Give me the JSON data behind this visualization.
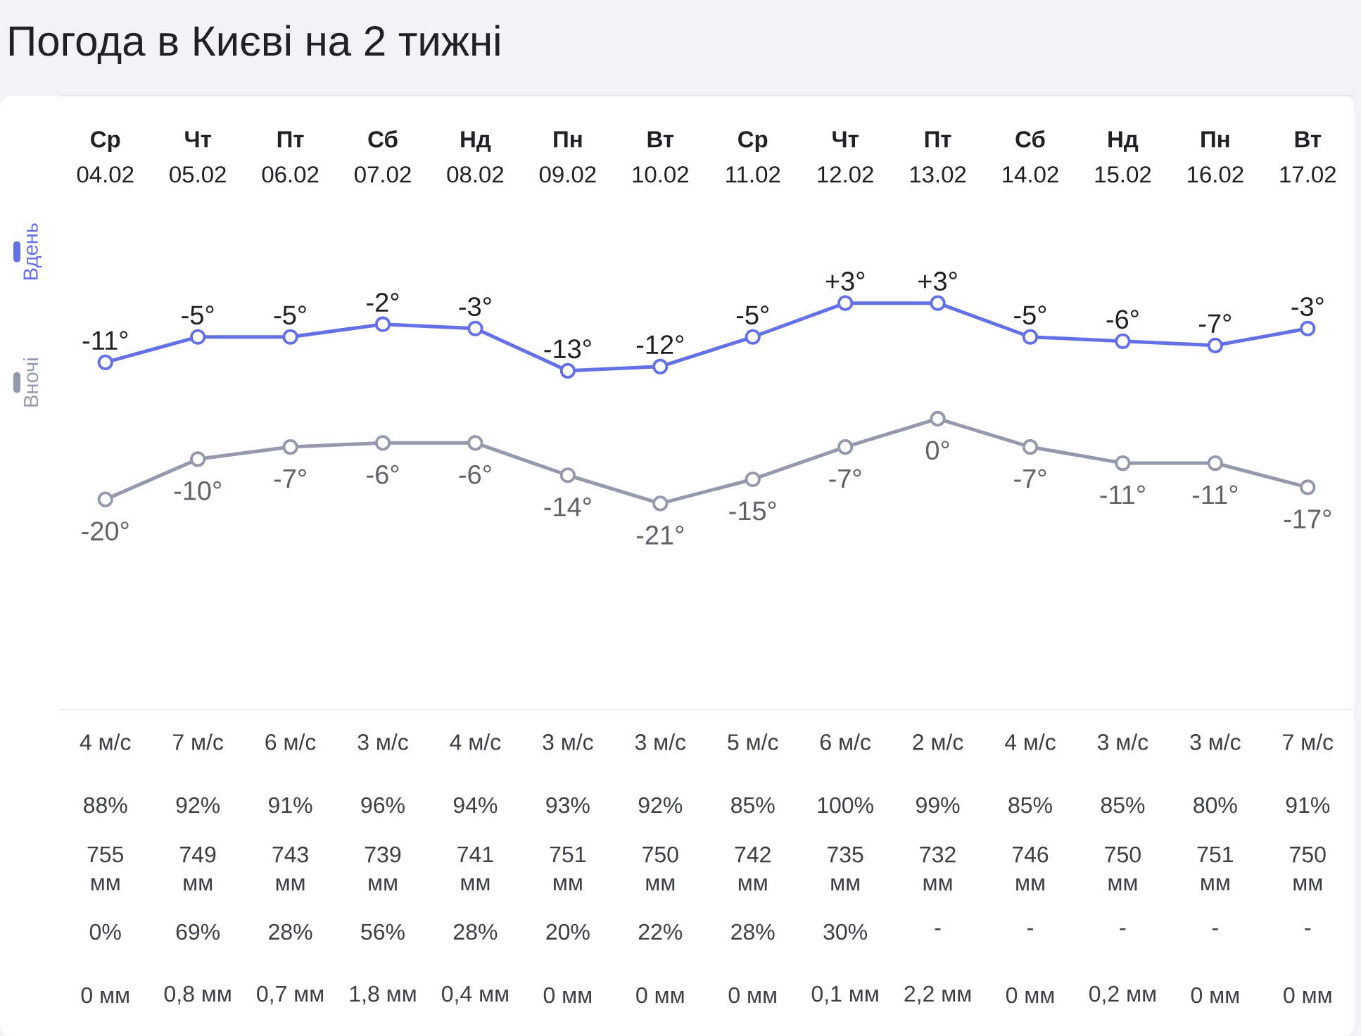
{
  "chart_data": [
    {
      "type": "line",
      "title": "Погода в Києві на 2 тижні",
      "categories": [
        "**Ср** 04.02",
        "**Чт** 05.02",
        "**Пт** 06.02",
        "**Сб** 07.02",
        "**Нд** 08.02",
        "**Пн** 09.02",
        "**Вт** 10.02",
        "**Ср** 11.02",
        "**Чт** 12.02",
        "**Пт** 13.02",
        "**Сб** 14.02",
        "**Нд** 15.02",
        "**Пн** 16.02",
        "**Вт** 17.02"
      ],
      "ylim": [
        -93,
        52
      ],
      "y2lim": [
        -72,
        80
      ],
      "tick_labels": "x",
      "marker": "circle",
      "legend": "left",
      "series": [
        {
          "name": "Вдень",
          "color": "#6470e6",
          "values": [
            -11,
            -5,
            -5,
            -2,
            -3,
            -13,
            -12,
            -5,
            3,
            3,
            -5,
            -6,
            -7,
            -3
          ],
          "value_labels": [
            "-11°",
            "-5°",
            "-5°",
            "-2°",
            "-3°",
            "-13°",
            "-12°",
            "-5°",
            "+3°",
            "+3°",
            "-5°",
            "-6°",
            "-7°",
            "-3°"
          ]
        },
        {
          "name": "Вночі",
          "color": "#9499ab",
          "axis": "y2",
          "values": [
            -20,
            -10,
            -7,
            -6,
            -6,
            -14,
            -21,
            -15,
            -7,
            0,
            -7,
            -11,
            -11,
            -17
          ],
          "value_labels": [
            "-20°",
            "-10°",
            "-7°",
            "-6°",
            "-6°",
            "-14°",
            "-21°",
            "-15°",
            "-7°",
            "0°",
            "-7°",
            "-11°",
            "-11°",
            "-17°"
          ]
        }
      ]
    },
    {
      "type": "other",
      "annotations": [
        "4 м/с",
        "7 м/с",
        "6 м/с",
        "3 м/с",
        "4 м/с",
        "3 м/с",
        "3 м/с",
        "5 м/с",
        "6 м/с",
        "2 м/с",
        "4 м/с",
        "3 м/с",
        "3 м/с",
        "7 м/с"
      ]
    },
    {
      "type": "other",
      "annotations": [
        "88%",
        "92%",
        "91%",
        "96%",
        "94%",
        "93%",
        "92%",
        "85%",
        "100%",
        "99%",
        "85%",
        "85%",
        "80%",
        "91%"
      ]
    },
    {
      "type": "other",
      "annotations": [
        "755 мм",
        "749 мм",
        "743 мм",
        "739 мм",
        "741 мм",
        "751 мм",
        "750 мм",
        "742 мм",
        "735 мм",
        "732 мм",
        "746 мм",
        "750 мм",
        "751 мм",
        "750 мм"
      ]
    },
    {
      "type": "other",
      "annotations": [
        "0%",
        "69%",
        "28%",
        "56%",
        "28%",
        "20%",
        "22%",
        "28%",
        "30%",
        "-",
        "-",
        "-",
        "-",
        "-"
      ]
    },
    {
      "type": "other",
      "annotations": [
        "0 мм",
        "0,8 мм",
        "0,7 мм",
        "1,8 мм",
        "0,4 мм",
        "0 мм",
        "0 мм",
        "0 мм",
        "0,1 мм",
        "2,2 мм",
        "0 мм",
        "0,2 мм",
        "0 мм",
        "0 мм"
      ]
    }
  ]
}
